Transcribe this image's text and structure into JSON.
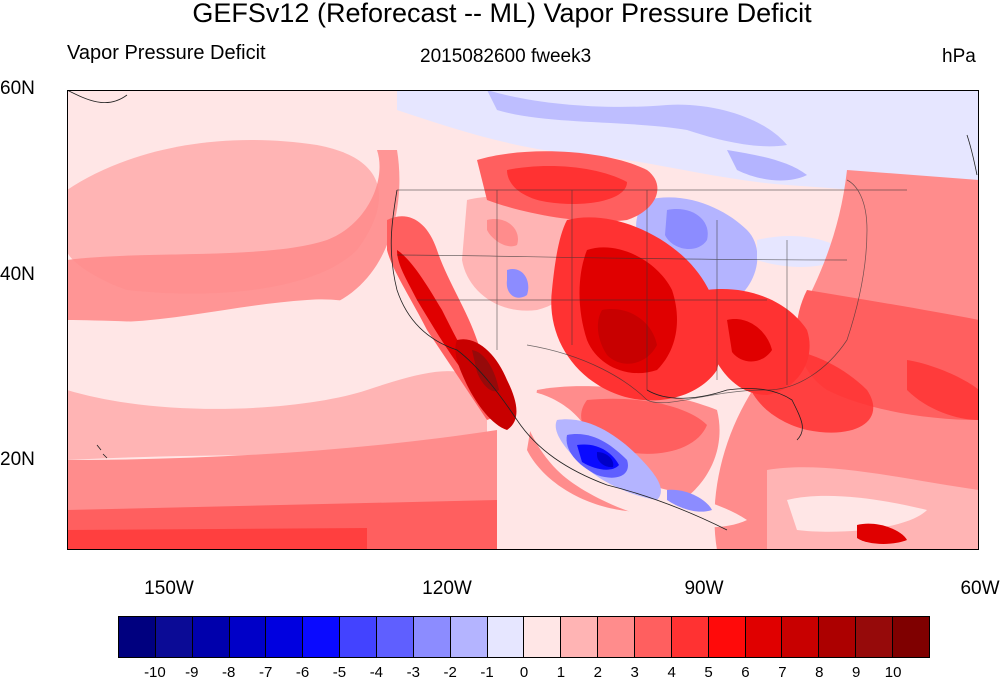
{
  "title": "GEFSv12 (Reforecast -- ML) Vapor Pressure Deficit",
  "left_string": "Vapor Pressure Deficit",
  "center_string": "2015082600 fweek3",
  "right_string": "hPa",
  "lat_labels": [
    "60N",
    "40N",
    "20N"
  ],
  "lon_labels": [
    "150W",
    "120W",
    "90W",
    "60W"
  ],
  "colorbar": {
    "labels": [
      "-10",
      "-9",
      "-8",
      "-7",
      "-6",
      "-5",
      "-4",
      "-3",
      "-2",
      "-1",
      "0",
      "1",
      "2",
      "3",
      "4",
      "5",
      "6",
      "7",
      "8",
      "9",
      "10"
    ],
    "colors": [
      "#00007f",
      "#0b0b96",
      "#0000ac",
      "#0000c8",
      "#0000e0",
      "#0a0aff",
      "#4343ff",
      "#5f5fff",
      "#8c8cff",
      "#b4b4ff",
      "#e6e6ff",
      "#ffe6e6",
      "#ffb4b4",
      "#ff8c8c",
      "#ff5f5f",
      "#ff3232",
      "#ff0a0a",
      "#e00000",
      "#c80000",
      "#ac0000",
      "#960a0a",
      "#7f0000"
    ]
  }
}
